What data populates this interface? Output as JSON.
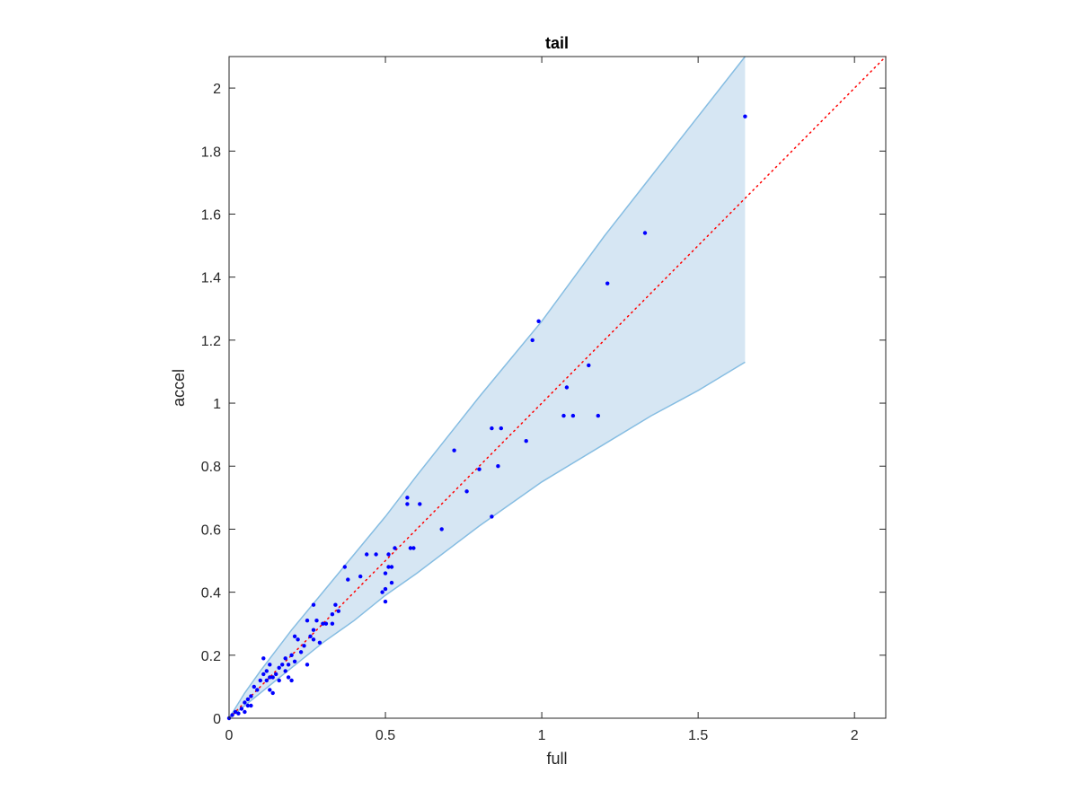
{
  "chart_data": {
    "type": "scatter",
    "title": "tail",
    "xlabel": "full",
    "ylabel": "accel",
    "xlim": [
      0,
      2.1
    ],
    "ylim": [
      0,
      2.1
    ],
    "x_ticks": [
      "0",
      "0.5",
      "1",
      "1.5",
      "2"
    ],
    "y_ticks": [
      "0",
      "0.2",
      "0.4",
      "0.6",
      "0.8",
      "1",
      "1.2",
      "1.4",
      "1.6",
      "1.8",
      "2"
    ],
    "grid": false,
    "reference_line": {
      "style": "dotted",
      "color": "#ff0000",
      "x": [
        0,
        2.1
      ],
      "y": [
        0,
        2.1
      ]
    },
    "band": {
      "fill_color": "#d6e6f3",
      "edge_color": "#86bde2",
      "x": [
        0,
        0.05,
        0.1,
        0.2,
        0.3,
        0.4,
        0.5,
        0.6,
        0.8,
        1.0,
        1.2,
        1.35,
        1.5,
        1.65
      ],
      "upper": [
        0,
        0.08,
        0.15,
        0.28,
        0.4,
        0.52,
        0.64,
        0.77,
        1.02,
        1.26,
        1.53,
        1.72,
        1.91,
        2.1
      ],
      "lower": [
        0,
        0.04,
        0.08,
        0.16,
        0.24,
        0.31,
        0.39,
        0.46,
        0.61,
        0.75,
        0.87,
        0.96,
        1.04,
        1.13
      ]
    },
    "point_color": "#0000ff",
    "points": [
      [
        0,
        0
      ],
      [
        0.01,
        0.01
      ],
      [
        0.02,
        0.02
      ],
      [
        0.03,
        0.015
      ],
      [
        0.04,
        0.03
      ],
      [
        0.05,
        0.05
      ],
      [
        0.05,
        0.02
      ],
      [
        0.06,
        0.04
      ],
      [
        0.06,
        0.06
      ],
      [
        0.07,
        0.04
      ],
      [
        0.07,
        0.07
      ],
      [
        0.08,
        0.1
      ],
      [
        0.09,
        0.09
      ],
      [
        0.1,
        0.12
      ],
      [
        0.11,
        0.14
      ],
      [
        0.11,
        0.19
      ],
      [
        0.12,
        0.12
      ],
      [
        0.12,
        0.15
      ],
      [
        0.13,
        0.13
      ],
      [
        0.13,
        0.17
      ],
      [
        0.13,
        0.09
      ],
      [
        0.14,
        0.13
      ],
      [
        0.14,
        0.08
      ],
      [
        0.15,
        0.14
      ],
      [
        0.16,
        0.12
      ],
      [
        0.16,
        0.16
      ],
      [
        0.17,
        0.17
      ],
      [
        0.18,
        0.15
      ],
      [
        0.18,
        0.19
      ],
      [
        0.19,
        0.17
      ],
      [
        0.19,
        0.13
      ],
      [
        0.2,
        0.2
      ],
      [
        0.2,
        0.12
      ],
      [
        0.21,
        0.18
      ],
      [
        0.21,
        0.26
      ],
      [
        0.22,
        0.25
      ],
      [
        0.23,
        0.21
      ],
      [
        0.24,
        0.23
      ],
      [
        0.25,
        0.17
      ],
      [
        0.25,
        0.31
      ],
      [
        0.26,
        0.26
      ],
      [
        0.27,
        0.28
      ],
      [
        0.27,
        0.25
      ],
      [
        0.27,
        0.36
      ],
      [
        0.28,
        0.31
      ],
      [
        0.29,
        0.24
      ],
      [
        0.3,
        0.3
      ],
      [
        0.31,
        0.3
      ],
      [
        0.33,
        0.33
      ],
      [
        0.33,
        0.3
      ],
      [
        0.34,
        0.36
      ],
      [
        0.35,
        0.34
      ],
      [
        0.37,
        0.48
      ],
      [
        0.38,
        0.44
      ],
      [
        0.42,
        0.45
      ],
      [
        0.44,
        0.52
      ],
      [
        0.47,
        0.52
      ],
      [
        0.49,
        0.4
      ],
      [
        0.5,
        0.41
      ],
      [
        0.5,
        0.46
      ],
      [
        0.5,
        0.37
      ],
      [
        0.51,
        0.48
      ],
      [
        0.51,
        0.52
      ],
      [
        0.52,
        0.43
      ],
      [
        0.52,
        0.48
      ],
      [
        0.53,
        0.54
      ],
      [
        0.57,
        0.7
      ],
      [
        0.57,
        0.68
      ],
      [
        0.58,
        0.54
      ],
      [
        0.59,
        0.54
      ],
      [
        0.61,
        0.68
      ],
      [
        0.68,
        0.6
      ],
      [
        0.72,
        0.85
      ],
      [
        0.76,
        0.72
      ],
      [
        0.8,
        0.79
      ],
      [
        0.84,
        0.92
      ],
      [
        0.84,
        0.64
      ],
      [
        0.86,
        0.8
      ],
      [
        0.87,
        0.92
      ],
      [
        0.95,
        0.88
      ],
      [
        0.97,
        1.2
      ],
      [
        0.99,
        1.26
      ],
      [
        1.07,
        0.96
      ],
      [
        1.08,
        1.05
      ],
      [
        1.1,
        0.96
      ],
      [
        1.15,
        1.12
      ],
      [
        1.18,
        0.96
      ],
      [
        1.21,
        1.38
      ],
      [
        1.33,
        1.54
      ],
      [
        1.65,
        1.91
      ]
    ]
  }
}
